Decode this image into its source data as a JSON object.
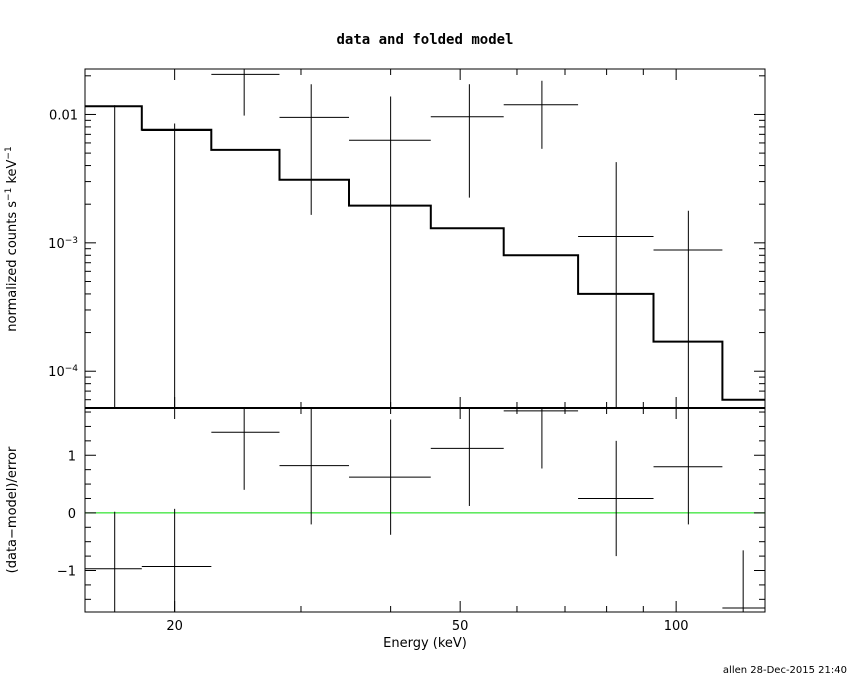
{
  "chart_data": {
    "title": "data and folded model",
    "footer": "allen 28-Dec-2015 21:40",
    "xlabel": "Energy (keV)",
    "xscale": "log",
    "xlim": [
      15.0,
      133.0
    ],
    "x_ticks": [
      {
        "value": 20,
        "label": "20"
      },
      {
        "value": 50,
        "label": "50"
      },
      {
        "value": 100,
        "label": "100"
      }
    ],
    "panels": [
      {
        "name": "spectrum",
        "type": "scatter",
        "ylabel": "normalized counts s",
        "ylabel_sup1": "−1",
        "ylabel_mid": " keV",
        "ylabel_sup2": "−1",
        "yscale": "log",
        "ylim": [
          5.17e-05,
          0.0226
        ],
        "y_ticks": [
          {
            "value": 0.01,
            "base": "0.01",
            "sup": ""
          },
          {
            "value": 0.001,
            "base": "10",
            "sup": "−3"
          },
          {
            "value": 0.0001,
            "base": "10",
            "sup": "−4"
          }
        ],
        "data": [
          {
            "x": 16.5,
            "xlo": 15.0,
            "xhi": 18.0,
            "y": 0.0116,
            "ylo": 5e-05,
            "yhi": 0.0118
          },
          {
            "x": 20.0,
            "xlo": 18.0,
            "xhi": 22.5,
            "y": 0.0075,
            "ylo": 5e-05,
            "yhi": 0.0085
          },
          {
            "x": 25.0,
            "xlo": 22.5,
            "xhi": 28.0,
            "y": 0.0205,
            "ylo": 0.0098,
            "yhi": 0.023
          },
          {
            "x": 31.0,
            "xlo": 28.0,
            "xhi": 35.0,
            "y": 0.0095,
            "ylo": 0.00165,
            "yhi": 0.0172
          },
          {
            "x": 40.0,
            "xlo": 35.0,
            "xhi": 45.5,
            "y": 0.0063,
            "ylo": 5e-05,
            "yhi": 0.0138
          },
          {
            "x": 51.5,
            "xlo": 45.5,
            "xhi": 57.5,
            "y": 0.0096,
            "ylo": 0.00225,
            "yhi": 0.0172
          },
          {
            "x": 65.0,
            "xlo": 57.5,
            "xhi": 73.0,
            "y": 0.0119,
            "ylo": 0.0054,
            "yhi": 0.0183
          },
          {
            "x": 82.5,
            "xlo": 73.0,
            "xhi": 93.0,
            "y": 0.00112,
            "ylo": 5e-05,
            "yhi": 0.00425
          },
          {
            "x": 104.0,
            "xlo": 93.0,
            "xhi": 116.0,
            "y": 0.00088,
            "ylo": 5e-05,
            "yhi": 0.00178
          }
        ],
        "model": {
          "name": "folded model",
          "steps": [
            {
              "xlo": 15.0,
              "xhi": 18.0,
              "y": 0.0116
            },
            {
              "xlo": 18.0,
              "xhi": 22.5,
              "y": 0.0076
            },
            {
              "xlo": 22.5,
              "xhi": 28.0,
              "y": 0.0053
            },
            {
              "xlo": 28.0,
              "xhi": 35.0,
              "y": 0.0031
            },
            {
              "xlo": 35.0,
              "xhi": 45.5,
              "y": 0.00195
            },
            {
              "xlo": 45.5,
              "xhi": 57.5,
              "y": 0.0013
            },
            {
              "xlo": 57.5,
              "xhi": 73.0,
              "y": 0.0008
            },
            {
              "xlo": 73.0,
              "xhi": 93.0,
              "y": 0.0004
            },
            {
              "xlo": 93.0,
              "xhi": 116.0,
              "y": 0.00017
            },
            {
              "xlo": 116.0,
              "xhi": 133.0,
              "y": 6e-05
            }
          ]
        }
      },
      {
        "name": "residuals",
        "type": "scatter",
        "ylabel": "(data−model)/error",
        "yscale": "linear",
        "ylim": [
          -1.72,
          1.82
        ],
        "y_ticks": [
          {
            "value": 1,
            "label": "1"
          },
          {
            "value": 0,
            "label": "0"
          },
          {
            "value": -1,
            "label": "−1"
          }
        ],
        "zero_line_color": "#00dd00",
        "data": [
          {
            "x": 16.5,
            "xlo": 15.0,
            "xhi": 18.0,
            "y": -0.97,
            "ylo": -1.75,
            "yhi": 0.02
          },
          {
            "x": 20.0,
            "xlo": 18.0,
            "xhi": 22.5,
            "y": -0.93,
            "ylo": -1.75,
            "yhi": 0.07
          },
          {
            "x": 25.0,
            "xlo": 22.5,
            "xhi": 28.0,
            "y": 1.4,
            "ylo": 0.4,
            "yhi": 1.82
          },
          {
            "x": 31.0,
            "xlo": 28.0,
            "xhi": 35.0,
            "y": 0.82,
            "ylo": -0.2,
            "yhi": 1.82
          },
          {
            "x": 40.0,
            "xlo": 35.0,
            "xhi": 45.5,
            "y": 0.62,
            "ylo": -0.38,
            "yhi": 1.62
          },
          {
            "x": 51.5,
            "xlo": 45.5,
            "xhi": 57.5,
            "y": 1.12,
            "ylo": 0.12,
            "yhi": 1.82
          },
          {
            "x": 65.0,
            "xlo": 57.5,
            "xhi": 73.0,
            "y": 1.77,
            "ylo": 0.77,
            "yhi": 1.82
          },
          {
            "x": 82.5,
            "xlo": 73.0,
            "xhi": 93.0,
            "y": 0.25,
            "ylo": -0.75,
            "yhi": 1.25
          },
          {
            "x": 104.0,
            "xlo": 93.0,
            "xhi": 116.0,
            "y": 0.8,
            "ylo": -0.2,
            "yhi": 1.82
          },
          {
            "x": 124.0,
            "xlo": 116.0,
            "xhi": 133.0,
            "y": -1.65,
            "ylo": -1.72,
            "yhi": -0.65
          }
        ]
      }
    ],
    "colors": {
      "data": "#000000",
      "model": "#000000",
      "zero_line": "#00dd00"
    }
  }
}
